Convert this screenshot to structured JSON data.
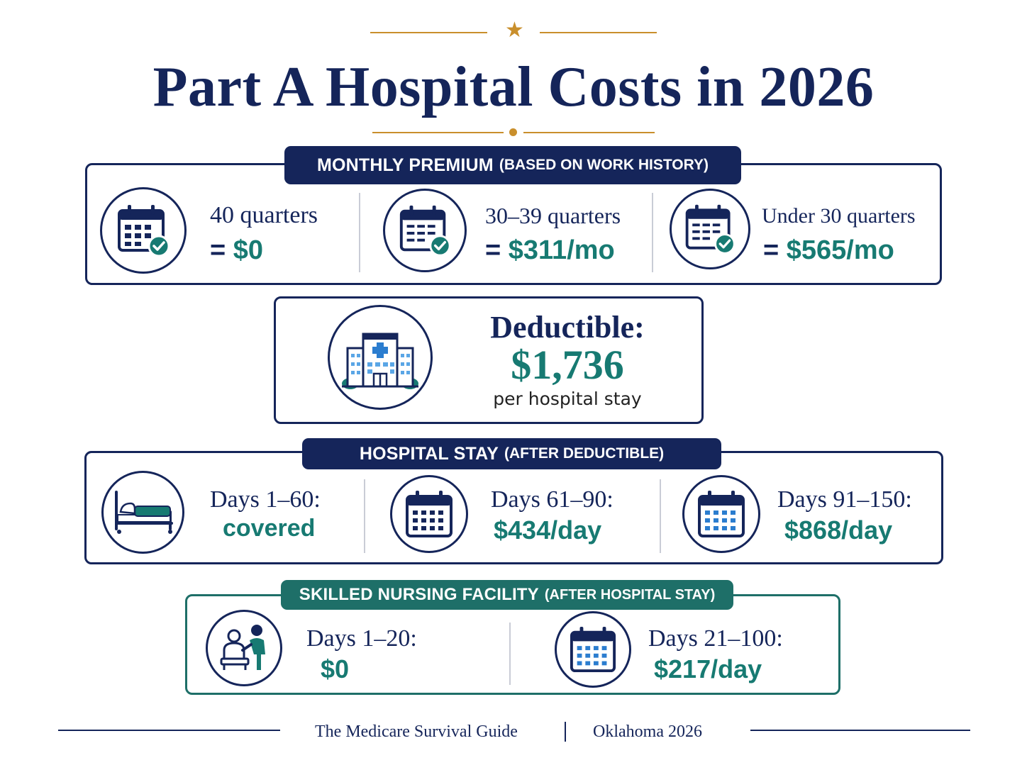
{
  "title": "Part A Hospital Costs in 2026",
  "colors": {
    "navy": "#15255a",
    "teal": "#177a72",
    "gold": "#c98f2c"
  },
  "premium": {
    "banner_main": "MONTHLY PREMIUM",
    "banner_sub": "(BASED ON WORK HISTORY)",
    "items": [
      {
        "label": "40 quarters",
        "eq": "= ",
        "value": "$0",
        "icon": "calendar-check-icon"
      },
      {
        "label": "30–39 quarters",
        "eq": "= ",
        "value": "$311/mo",
        "icon": "calendar-check-icon"
      },
      {
        "label": "Under 30 quarters",
        "eq": "= ",
        "value": "$565/mo",
        "icon": "calendar-check-icon"
      }
    ]
  },
  "deductible": {
    "label": "Deductible:",
    "value": "$1,736",
    "note": "per hospital stay",
    "icon": "hospital-building-icon"
  },
  "hospital_stay": {
    "banner_main": "HOSPITAL STAY",
    "banner_sub": "(AFTER DEDUCTIBLE)",
    "items": [
      {
        "label": "Days 1–60:",
        "value": "covered",
        "icon": "hospital-bed-icon"
      },
      {
        "label": "Days 61–90:",
        "value": "$434/day",
        "icon": "calendar-icon"
      },
      {
        "label": "Days 91–150:",
        "value": "$868/day",
        "icon": "calendar-icon"
      }
    ]
  },
  "snf": {
    "banner_main": "SKILLED NURSING FACILITY",
    "banner_sub": "(AFTER HOSPITAL STAY)",
    "items": [
      {
        "label": "Days 1–20:",
        "value": "$0",
        "icon": "caregiver-patient-icon"
      },
      {
        "label": "Days 21–100:",
        "value": "$217/day",
        "icon": "calendar-icon"
      }
    ]
  },
  "footer": {
    "left": "The Medicare Survival Guide",
    "right": "Oklahoma 2026"
  }
}
